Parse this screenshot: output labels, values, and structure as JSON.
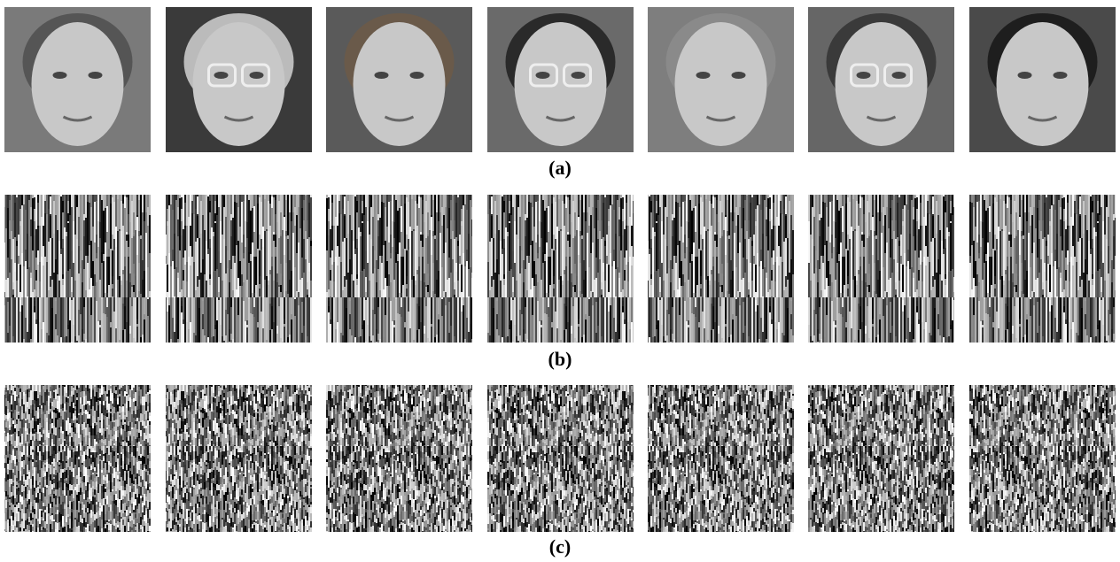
{
  "figure": {
    "panel_labels": [
      "(a)",
      "(b)",
      "(c)"
    ]
  }
}
